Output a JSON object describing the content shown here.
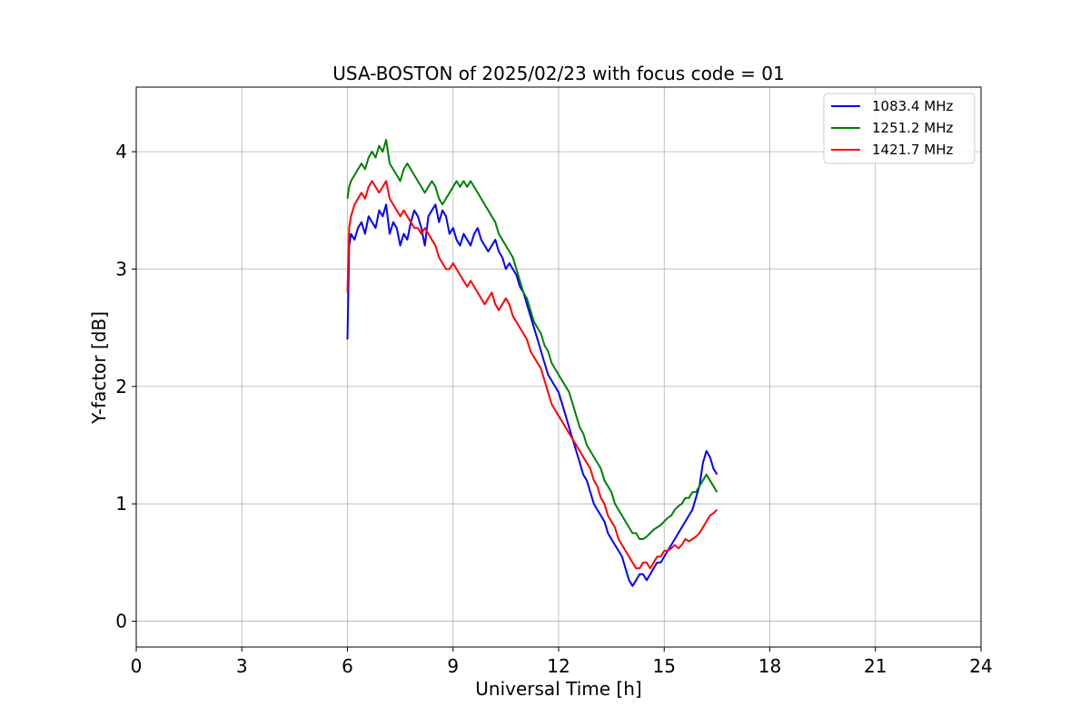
{
  "chart_data": {
    "type": "line",
    "title": "USA-BOSTON of 2025/02/23 with focus code = 01",
    "xlabel": "Universal Time [h]",
    "ylabel": "Y-factor [dB]",
    "xlim": [
      0,
      24
    ],
    "ylim": [
      -0.22,
      4.55
    ],
    "x_ticks": [
      0,
      3,
      6,
      9,
      12,
      15,
      18,
      21,
      24
    ],
    "x_tick_labels": [
      "0",
      "3",
      "6",
      "9",
      "12",
      "15",
      "18",
      "21",
      "24"
    ],
    "y_ticks": [
      0,
      1,
      2,
      3,
      4
    ],
    "y_tick_labels": [
      "0",
      "1",
      "2",
      "3",
      "4"
    ],
    "grid": true,
    "legend_position": "top-right",
    "series": [
      {
        "name": "1083.4 MHz",
        "color": "#0000ff",
        "x": [
          6.0,
          6.05,
          6.1,
          6.2,
          6.3,
          6.4,
          6.5,
          6.6,
          6.7,
          6.8,
          6.9,
          7.0,
          7.1,
          7.2,
          7.3,
          7.4,
          7.5,
          7.6,
          7.7,
          7.8,
          7.9,
          8.0,
          8.1,
          8.2,
          8.3,
          8.4,
          8.5,
          8.6,
          8.7,
          8.8,
          8.9,
          9.0,
          9.1,
          9.2,
          9.3,
          9.4,
          9.5,
          9.6,
          9.7,
          9.8,
          9.9,
          10.0,
          10.1,
          10.2,
          10.3,
          10.4,
          10.5,
          10.6,
          10.7,
          10.8,
          10.9,
          11.0,
          11.1,
          11.2,
          11.3,
          11.4,
          11.5,
          11.6,
          11.7,
          11.8,
          11.9,
          12.0,
          12.1,
          12.2,
          12.3,
          12.4,
          12.5,
          12.6,
          12.7,
          12.8,
          12.9,
          13.0,
          13.1,
          13.2,
          13.3,
          13.4,
          13.5,
          13.6,
          13.7,
          13.8,
          13.9,
          14.0,
          14.1,
          14.2,
          14.3,
          14.4,
          14.5,
          14.6,
          14.7,
          14.8,
          14.9,
          15.0,
          15.1,
          15.2,
          15.3,
          15.4,
          15.5,
          15.6,
          15.7,
          15.8,
          15.9,
          16.0,
          16.1,
          16.2,
          16.3,
          16.4,
          16.5
        ],
        "y": [
          2.4,
          3.2,
          3.3,
          3.25,
          3.35,
          3.4,
          3.3,
          3.45,
          3.4,
          3.35,
          3.5,
          3.45,
          3.55,
          3.3,
          3.4,
          3.35,
          3.2,
          3.3,
          3.25,
          3.4,
          3.5,
          3.45,
          3.35,
          3.2,
          3.45,
          3.5,
          3.55,
          3.4,
          3.5,
          3.45,
          3.3,
          3.35,
          3.25,
          3.2,
          3.3,
          3.25,
          3.2,
          3.3,
          3.35,
          3.25,
          3.2,
          3.15,
          3.2,
          3.25,
          3.15,
          3.1,
          3.0,
          3.05,
          3.0,
          2.95,
          2.85,
          2.8,
          2.7,
          2.6,
          2.5,
          2.4,
          2.3,
          2.2,
          2.1,
          2.05,
          2.0,
          1.95,
          1.85,
          1.75,
          1.65,
          1.55,
          1.45,
          1.35,
          1.25,
          1.2,
          1.1,
          1.0,
          0.95,
          0.9,
          0.85,
          0.75,
          0.7,
          0.65,
          0.6,
          0.55,
          0.45,
          0.35,
          0.3,
          0.35,
          0.4,
          0.4,
          0.35,
          0.4,
          0.45,
          0.5,
          0.5,
          0.55,
          0.6,
          0.65,
          0.7,
          0.75,
          0.8,
          0.85,
          0.9,
          0.95,
          1.05,
          1.15,
          1.35,
          1.45,
          1.4,
          1.3,
          1.25
        ]
      },
      {
        "name": "1251.2 MHz",
        "color": "#008000",
        "x": [
          6.0,
          6.05,
          6.1,
          6.2,
          6.3,
          6.4,
          6.5,
          6.6,
          6.7,
          6.8,
          6.9,
          7.0,
          7.1,
          7.2,
          7.3,
          7.4,
          7.5,
          7.6,
          7.7,
          7.8,
          7.9,
          8.0,
          8.1,
          8.2,
          8.3,
          8.4,
          8.5,
          8.6,
          8.7,
          8.8,
          8.9,
          9.0,
          9.1,
          9.2,
          9.3,
          9.4,
          9.5,
          9.6,
          9.7,
          9.8,
          9.9,
          10.0,
          10.1,
          10.2,
          10.3,
          10.4,
          10.5,
          10.6,
          10.7,
          10.8,
          10.9,
          11.0,
          11.1,
          11.2,
          11.3,
          11.4,
          11.5,
          11.6,
          11.7,
          11.8,
          11.9,
          12.0,
          12.1,
          12.2,
          12.3,
          12.4,
          12.5,
          12.6,
          12.7,
          12.8,
          12.9,
          13.0,
          13.1,
          13.2,
          13.3,
          13.4,
          13.5,
          13.6,
          13.7,
          13.8,
          13.9,
          14.0,
          14.1,
          14.2,
          14.3,
          14.4,
          14.5,
          14.6,
          14.7,
          14.8,
          14.9,
          15.0,
          15.1,
          15.2,
          15.3,
          15.4,
          15.5,
          15.6,
          15.7,
          15.8,
          15.9,
          16.0,
          16.1,
          16.2,
          16.3,
          16.4,
          16.5
        ],
        "y": [
          3.6,
          3.7,
          3.75,
          3.8,
          3.85,
          3.9,
          3.85,
          3.95,
          4.0,
          3.95,
          4.05,
          4.0,
          4.1,
          3.9,
          3.85,
          3.8,
          3.75,
          3.85,
          3.9,
          3.85,
          3.8,
          3.75,
          3.7,
          3.65,
          3.7,
          3.75,
          3.7,
          3.6,
          3.55,
          3.6,
          3.65,
          3.7,
          3.75,
          3.7,
          3.75,
          3.7,
          3.75,
          3.7,
          3.65,
          3.6,
          3.55,
          3.5,
          3.45,
          3.4,
          3.3,
          3.25,
          3.2,
          3.15,
          3.1,
          3.0,
          2.9,
          2.8,
          2.75,
          2.65,
          2.55,
          2.5,
          2.45,
          2.35,
          2.3,
          2.2,
          2.15,
          2.1,
          2.05,
          2.0,
          1.95,
          1.85,
          1.75,
          1.65,
          1.6,
          1.5,
          1.45,
          1.4,
          1.35,
          1.3,
          1.2,
          1.15,
          1.1,
          1.0,
          0.95,
          0.9,
          0.85,
          0.8,
          0.75,
          0.75,
          0.7,
          0.7,
          0.72,
          0.75,
          0.78,
          0.8,
          0.82,
          0.85,
          0.88,
          0.9,
          0.95,
          0.98,
          1.0,
          1.05,
          1.05,
          1.1,
          1.1,
          1.15,
          1.2,
          1.25,
          1.2,
          1.15,
          1.1
        ]
      },
      {
        "name": "1421.7 MHz",
        "color": "#ff0000",
        "x": [
          6.0,
          6.05,
          6.1,
          6.2,
          6.3,
          6.4,
          6.5,
          6.6,
          6.7,
          6.8,
          6.9,
          7.0,
          7.1,
          7.2,
          7.3,
          7.4,
          7.5,
          7.6,
          7.7,
          7.8,
          7.9,
          8.0,
          8.1,
          8.2,
          8.3,
          8.4,
          8.5,
          8.6,
          8.7,
          8.8,
          8.9,
          9.0,
          9.1,
          9.2,
          9.3,
          9.4,
          9.5,
          9.6,
          9.7,
          9.8,
          9.9,
          10.0,
          10.1,
          10.2,
          10.3,
          10.4,
          10.5,
          10.6,
          10.7,
          10.8,
          10.9,
          11.0,
          11.1,
          11.2,
          11.3,
          11.4,
          11.5,
          11.6,
          11.7,
          11.8,
          11.9,
          12.0,
          12.1,
          12.2,
          12.3,
          12.4,
          12.5,
          12.6,
          12.7,
          12.8,
          12.9,
          13.0,
          13.1,
          13.2,
          13.3,
          13.4,
          13.5,
          13.6,
          13.7,
          13.8,
          13.9,
          14.0,
          14.1,
          14.2,
          14.3,
          14.4,
          14.5,
          14.6,
          14.7,
          14.8,
          14.9,
          15.0,
          15.1,
          15.2,
          15.3,
          15.4,
          15.5,
          15.6,
          15.7,
          15.8,
          15.9,
          16.0,
          16.1,
          16.2,
          16.3,
          16.4,
          16.5
        ],
        "y": [
          2.8,
          3.35,
          3.45,
          3.55,
          3.6,
          3.65,
          3.6,
          3.7,
          3.75,
          3.7,
          3.65,
          3.7,
          3.75,
          3.6,
          3.55,
          3.5,
          3.45,
          3.5,
          3.45,
          3.4,
          3.35,
          3.35,
          3.3,
          3.35,
          3.3,
          3.25,
          3.2,
          3.1,
          3.05,
          3.0,
          3.0,
          3.05,
          3.0,
          2.95,
          2.9,
          2.85,
          2.9,
          2.85,
          2.8,
          2.75,
          2.7,
          2.75,
          2.8,
          2.7,
          2.65,
          2.7,
          2.75,
          2.7,
          2.6,
          2.55,
          2.5,
          2.45,
          2.4,
          2.3,
          2.25,
          2.2,
          2.15,
          2.05,
          1.95,
          1.85,
          1.8,
          1.75,
          1.7,
          1.65,
          1.6,
          1.55,
          1.5,
          1.45,
          1.4,
          1.35,
          1.3,
          1.2,
          1.15,
          1.05,
          1.0,
          0.9,
          0.85,
          0.8,
          0.7,
          0.65,
          0.6,
          0.55,
          0.5,
          0.45,
          0.45,
          0.5,
          0.5,
          0.45,
          0.5,
          0.55,
          0.55,
          0.6,
          0.6,
          0.62,
          0.65,
          0.62,
          0.65,
          0.7,
          0.68,
          0.7,
          0.72,
          0.75,
          0.8,
          0.85,
          0.9,
          0.92,
          0.95
        ]
      }
    ]
  }
}
